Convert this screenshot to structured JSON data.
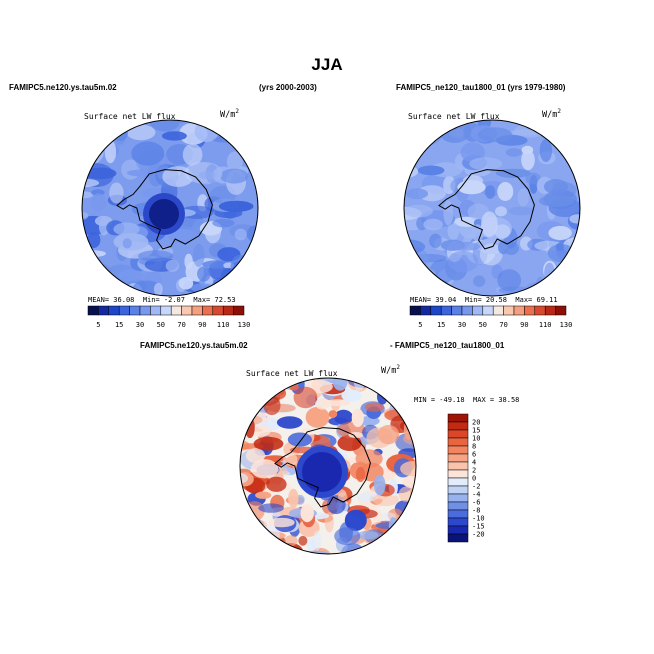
{
  "figure": {
    "title": "JJA",
    "case_label": "FAMIPC5.ne120.ys.tau5m.02",
    "case_years": "(yrs 2000-2003)",
    "control_label": "FAMIPC5_ne120_tau1800_01 (yrs 1979-1980)",
    "diff_case_label": "FAMIPC5.ne120.ys.tau5m.02",
    "diff_control_label": "- FAMIPC5_ne120_tau1800_01"
  },
  "chart_data": [
    {
      "type": "heatmap",
      "projection": "south-polar-stereographic",
      "title": "Surface net LW flux",
      "units": "W/m",
      "units_exponent": "2",
      "stats": {
        "mean_label": "MEAN=",
        "mean": "36.08",
        "min_label": "Min=",
        "min": "-2.07",
        "max_label": "Max=",
        "max": "72.53"
      },
      "colorbar": {
        "orientation": "horizontal",
        "levels": [
          "5",
          "15",
          "30",
          "50",
          "70",
          "90",
          "110",
          "130"
        ],
        "colors": [
          "#08104e",
          "#1428a0",
          "#1e46c8",
          "#3c64dc",
          "#5a82e6",
          "#7898ee",
          "#a0b8f4",
          "#c8d6fa",
          "#f4e8e0",
          "#f8c8b0",
          "#f4a080",
          "#ea7050",
          "#d84a30",
          "#b82814",
          "#8c1008"
        ]
      }
    },
    {
      "type": "heatmap",
      "projection": "south-polar-stereographic",
      "title": "Surface net LW flux",
      "units": "W/m",
      "units_exponent": "2",
      "stats": {
        "mean_label": "MEAN=",
        "mean": "39.04",
        "min_label": "Min=",
        "min": "20.58",
        "max_label": "Max=",
        "max": "69.11"
      },
      "colorbar": {
        "orientation": "horizontal",
        "levels": [
          "5",
          "15",
          "30",
          "50",
          "70",
          "90",
          "110",
          "130"
        ],
        "colors": [
          "#08104e",
          "#1428a0",
          "#1e46c8",
          "#3c64dc",
          "#5a82e6",
          "#7898ee",
          "#a0b8f4",
          "#c8d6fa",
          "#f4e8e0",
          "#f8c8b0",
          "#f4a080",
          "#ea7050",
          "#d84a30",
          "#b82814",
          "#8c1008"
        ]
      }
    },
    {
      "type": "heatmap",
      "projection": "south-polar-stereographic",
      "title": "Surface net LW flux",
      "units": "W/m",
      "units_exponent": "2",
      "stats": {
        "min_label": "MIN =",
        "min": "-49.18",
        "max_label": "MAX =",
        "max": "38.58"
      },
      "colorbar": {
        "orientation": "vertical",
        "levels": [
          "20",
          "15",
          "10",
          "8",
          "6",
          "4",
          "2",
          "0",
          "-2",
          "-4",
          "-6",
          "-8",
          "-10",
          "-15",
          "-20"
        ],
        "colors": [
          "#a01406",
          "#c42a12",
          "#dc4628",
          "#ea6440",
          "#f28460",
          "#f6a484",
          "#fac4ac",
          "#fde4d8",
          "#e2ecfb",
          "#c0d2f6",
          "#98b2ee",
          "#7090e6",
          "#4a6cdc",
          "#2c48cc",
          "#1a28b0",
          "#0a1478"
        ]
      }
    }
  ]
}
